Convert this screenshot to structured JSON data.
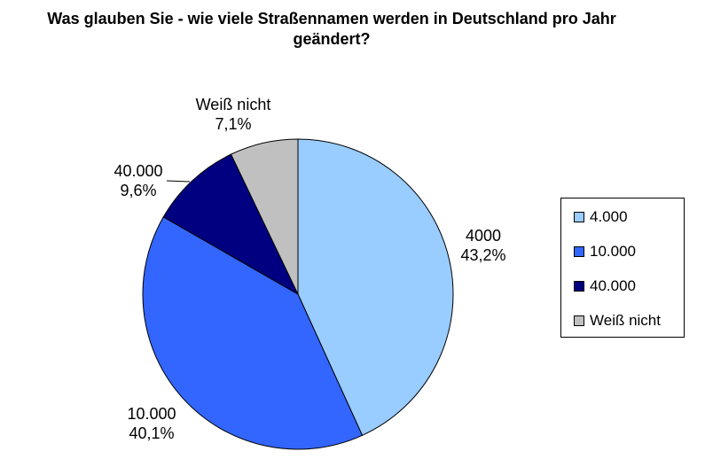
{
  "chart_data": {
    "type": "pie",
    "title": "Was glauben Sie - wie viele Straßennamen werden in Deutschland pro Jahr geändert?",
    "title_lines": [
      "Was glauben Sie - wie viele Straßennamen werden in Deutschland pro Jahr",
      "geändert?"
    ],
    "slices": [
      {
        "label": "4000",
        "legend": "4.000",
        "value": 43.2,
        "value_label": "43,2%",
        "color": "#99ccff"
      },
      {
        "label": "10.000",
        "legend": "10.000",
        "value": 40.1,
        "value_label": "40,1%",
        "color": "#3366ff"
      },
      {
        "label": "40.000",
        "legend": "40.000",
        "value": 9.6,
        "value_label": "9,6%",
        "color": "#000080"
      },
      {
        "label": "Weiß nicht",
        "legend": "Weiß nicht",
        "value": 7.1,
        "value_label": "7,1%",
        "color": "#c0c0c0"
      }
    ],
    "start_angle": "12 o'clock",
    "direction": "clockwise",
    "legend_position": "right"
  }
}
